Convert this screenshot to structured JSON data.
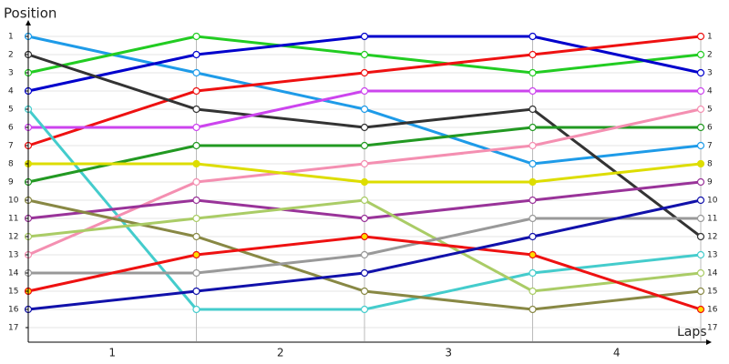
{
  "chart_data": {
    "type": "line",
    "ylabel": "Position",
    "xlabel": "Laps",
    "x": [
      0,
      1,
      2,
      3,
      4
    ],
    "xlim": [
      0,
      4
    ],
    "ylim": [
      17.75,
      0.25
    ],
    "xticks": [
      {
        "value": 0.5,
        "label": "1"
      },
      {
        "value": 1.5,
        "label": "2"
      },
      {
        "value": 2.5,
        "label": "3"
      },
      {
        "value": 3.5,
        "label": "4"
      }
    ],
    "yticks": [
      1,
      2,
      3,
      4,
      5,
      6,
      7,
      8,
      9,
      10,
      11,
      12,
      13,
      14,
      15,
      16,
      17
    ],
    "grid": true,
    "series": [
      {
        "color": "#1e9be8",
        "values": [
          1,
          3,
          5,
          8,
          7
        ]
      },
      {
        "color": "#22cc22",
        "values": [
          3,
          1,
          2,
          3,
          2
        ]
      },
      {
        "color": "#0000cc",
        "values": [
          4,
          2,
          1,
          1,
          3
        ]
      },
      {
        "color": "#ee1111",
        "values": [
          7,
          4,
          3,
          2,
          1
        ]
      },
      {
        "color": "#333333",
        "values": [
          2,
          5,
          6,
          5,
          12
        ]
      },
      {
        "color": "#cc44ee",
        "values": [
          6,
          6,
          4,
          4,
          4
        ]
      },
      {
        "color": "#44cccc",
        "values": [
          5,
          16,
          16,
          14,
          13
        ]
      },
      {
        "color": "#229922",
        "values": [
          9,
          7,
          7,
          6,
          6
        ]
      },
      {
        "color": "#f48fb1",
        "values": [
          13,
          9,
          8,
          7,
          5
        ]
      },
      {
        "color": "#dddd00",
        "values": [
          8,
          8,
          9,
          9,
          8
        ],
        "marker_fill": "#dddd00"
      },
      {
        "color": "#993399",
        "values": [
          11,
          10,
          11,
          10,
          9
        ]
      },
      {
        "color": "#888844",
        "values": [
          10,
          12,
          15,
          16,
          15
        ]
      },
      {
        "color": "#aacc66",
        "values": [
          12,
          11,
          10,
          15,
          14
        ]
      },
      {
        "color": "#999999",
        "values": [
          14,
          14,
          13,
          11,
          11
        ]
      },
      {
        "color": "#ee1111",
        "values": [
          15,
          13,
          12,
          13,
          16
        ],
        "marker_fill": "#ffdd00"
      },
      {
        "color": "#1111aa",
        "values": [
          16,
          15,
          14,
          12,
          10
        ]
      }
    ]
  }
}
